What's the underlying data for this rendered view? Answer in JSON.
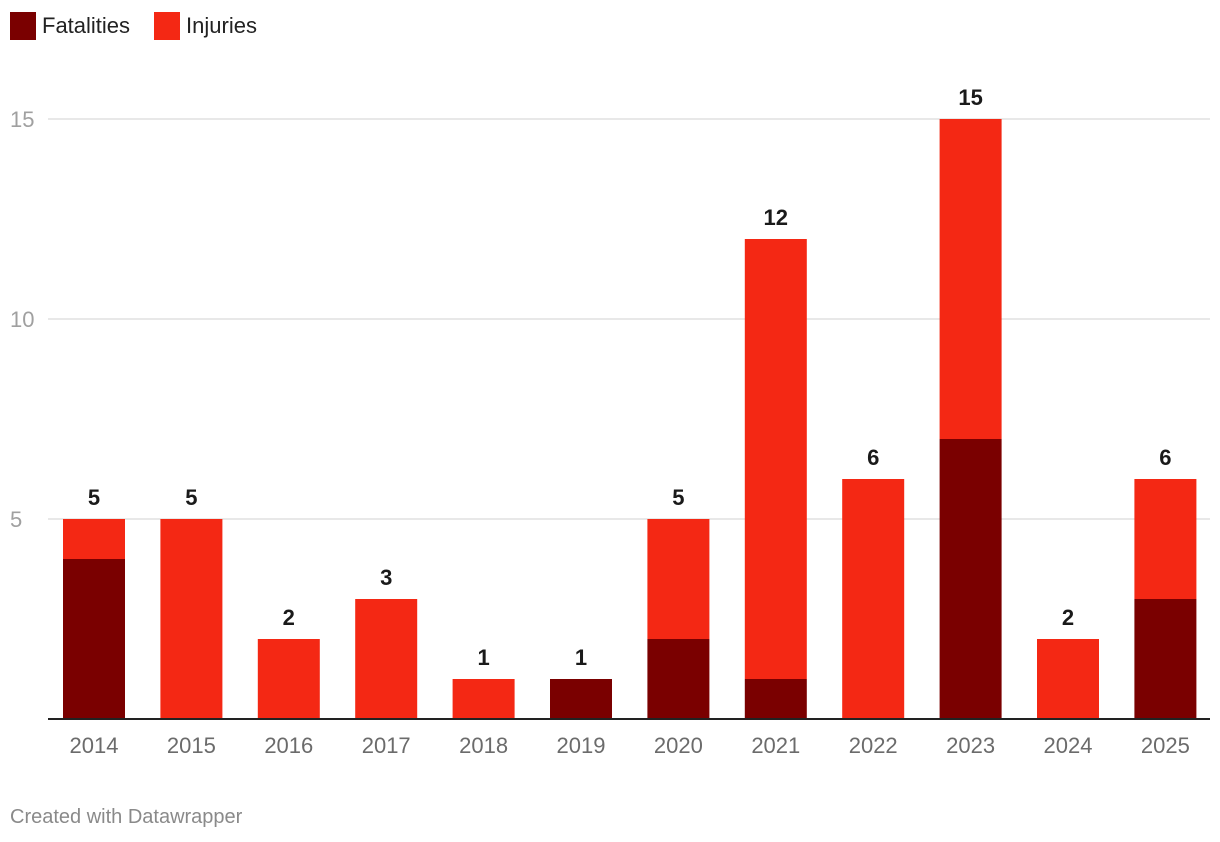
{
  "chart_data": {
    "type": "bar",
    "stacked": true,
    "title": "",
    "xlabel": "",
    "ylabel": "",
    "categories": [
      "2014",
      "2015",
      "2016",
      "2017",
      "2018",
      "2019",
      "2020",
      "2021",
      "2022",
      "2023",
      "2024",
      "2025"
    ],
    "series": [
      {
        "name": "Fatalities",
        "color": "#7a0000",
        "values": [
          4,
          0,
          0,
          0,
          0,
          1,
          2,
          1,
          0,
          7,
          0,
          3
        ]
      },
      {
        "name": "Injuries",
        "color": "#f42814",
        "values": [
          1,
          5,
          2,
          3,
          1,
          0,
          3,
          11,
          6,
          8,
          2,
          3
        ]
      }
    ],
    "totals": [
      5,
      5,
      2,
      3,
      1,
      1,
      5,
      12,
      6,
      15,
      2,
      6
    ],
    "ylim": [
      0,
      15
    ],
    "yticks": [
      5,
      10,
      15
    ],
    "grid": true,
    "legend": "top-left"
  },
  "legend": {
    "fatalities_label": "Fatalities",
    "injuries_label": "Injuries"
  },
  "footer": {
    "credit": "Created with Datawrapper"
  }
}
